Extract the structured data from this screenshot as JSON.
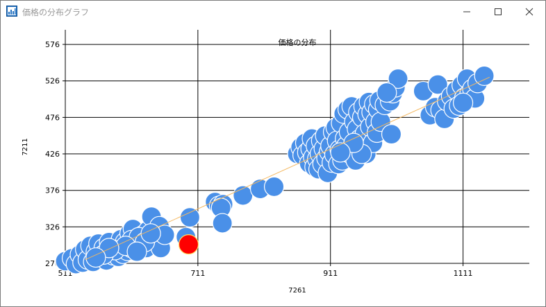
{
  "window": {
    "title": "価格の分布グラフ"
  },
  "chart_data": {
    "type": "scatter",
    "title": "価格の分布",
    "xlabel": "7261",
    "ylabel": "7211",
    "xlim": [
      511,
      1211
    ],
    "ylim": [
      276,
      596
    ],
    "xticks": [
      "511",
      "711",
      "911",
      "1111"
    ],
    "yticks": [
      "276",
      "326",
      "376",
      "426",
      "476",
      "526",
      "576"
    ],
    "grid": true,
    "colors": {
      "points": "#4a90e8",
      "highlight": "#ff0000",
      "trend": "#f4b860"
    },
    "trendline": {
      "x": [
        541,
        1151
      ],
      "y": [
        281,
        531
      ]
    },
    "highlight": {
      "x": 697,
      "y": 302
    },
    "points": [
      [
        511,
        279
      ],
      [
        521,
        283
      ],
      [
        527,
        275
      ],
      [
        533,
        288
      ],
      [
        537,
        277
      ],
      [
        541,
        295
      ],
      [
        545,
        281
      ],
      [
        549,
        300
      ],
      [
        553,
        278
      ],
      [
        557,
        292
      ],
      [
        561,
        303
      ],
      [
        565,
        285
      ],
      [
        569,
        297
      ],
      [
        573,
        280
      ],
      [
        577,
        305
      ],
      [
        579,
        291
      ],
      [
        583,
        287
      ],
      [
        587,
        299
      ],
      [
        591,
        285
      ],
      [
        595,
        309
      ],
      [
        598,
        289
      ],
      [
        601,
        305
      ],
      [
        605,
        293
      ],
      [
        608,
        317
      ],
      [
        611,
        297
      ],
      [
        613,
        323
      ],
      [
        617,
        302
      ],
      [
        621,
        293
      ],
      [
        625,
        307
      ],
      [
        629,
        315
      ],
      [
        633,
        297
      ],
      [
        636,
        321
      ],
      [
        641,
        340
      ],
      [
        645,
        307
      ],
      [
        649,
        319
      ],
      [
        653,
        327
      ],
      [
        655,
        297
      ],
      [
        661,
        315
      ],
      [
        693,
        312
      ],
      [
        699,
        339
      ],
      [
        611,
        308
      ],
      [
        622,
        312
      ],
      [
        586,
        294
      ],
      [
        569,
        288
      ],
      [
        631,
        305
      ],
      [
        602,
        300
      ],
      [
        577,
        297
      ],
      [
        619,
        292
      ],
      [
        640,
        317
      ],
      [
        557,
        284
      ],
      [
        737,
        360
      ],
      [
        743,
        355
      ],
      [
        749,
        357
      ],
      [
        746,
        352
      ],
      [
        748,
        331
      ],
      [
        779,
        369
      ],
      [
        805,
        378
      ],
      [
        826,
        381
      ],
      [
        861,
        426
      ],
      [
        866,
        435
      ],
      [
        869,
        424
      ],
      [
        873,
        441
      ],
      [
        876,
        428
      ],
      [
        879,
        413
      ],
      [
        881,
        433
      ],
      [
        883,
        447
      ],
      [
        885,
        421
      ],
      [
        887,
        408
      ],
      [
        889,
        437
      ],
      [
        891,
        419
      ],
      [
        893,
        405
      ],
      [
        895,
        426
      ],
      [
        897,
        444
      ],
      [
        899,
        412
      ],
      [
        901,
        433
      ],
      [
        903,
        451
      ],
      [
        905,
        420
      ],
      [
        907,
        400
      ],
      [
        909,
        429
      ],
      [
        911,
        437
      ],
      [
        913,
        414
      ],
      [
        915,
        456
      ],
      [
        917,
        425
      ],
      [
        919,
        462
      ],
      [
        921,
        444
      ],
      [
        923,
        412
      ],
      [
        925,
        432
      ],
      [
        927,
        468
      ],
      [
        929,
        417
      ],
      [
        931,
        481
      ],
      [
        933,
        447
      ],
      [
        935,
        437
      ],
      [
        937,
        487
      ],
      [
        939,
        456
      ],
      [
        941,
        426
      ],
      [
        943,
        491
      ],
      [
        945,
        438
      ],
      [
        947,
        470
      ],
      [
        949,
        417
      ],
      [
        951,
        460
      ],
      [
        953,
        483
      ],
      [
        955,
        446
      ],
      [
        957,
        435
      ],
      [
        959,
        476
      ],
      [
        961,
        491
      ],
      [
        963,
        454
      ],
      [
        965,
        426
      ],
      [
        967,
        480
      ],
      [
        969,
        497
      ],
      [
        971,
        463
      ],
      [
        973,
        483
      ],
      [
        975,
        441
      ],
      [
        977,
        494
      ],
      [
        979,
        470
      ],
      [
        981,
        455
      ],
      [
        983,
        487
      ],
      [
        985,
        499
      ],
      [
        987,
        470
      ],
      [
        993,
        493
      ],
      [
        1003,
        453
      ],
      [
        1001,
        498
      ],
      [
        1005,
        509
      ],
      [
        1009,
        517
      ],
      [
        1013,
        529
      ],
      [
        996,
        510
      ],
      [
        958,
        426
      ],
      [
        946,
        441
      ],
      [
        926,
        428
      ],
      [
        1051,
        512
      ],
      [
        1061,
        479
      ],
      [
        1069,
        490
      ],
      [
        1073,
        521
      ],
      [
        1077,
        486
      ],
      [
        1083,
        474
      ],
      [
        1087,
        498
      ],
      [
        1093,
        505
      ],
      [
        1097,
        488
      ],
      [
        1101,
        513
      ],
      [
        1105,
        492
      ],
      [
        1109,
        520
      ],
      [
        1113,
        503
      ],
      [
        1117,
        529
      ],
      [
        1121,
        509
      ],
      [
        1125,
        515
      ],
      [
        1129,
        502
      ],
      [
        1133,
        523
      ],
      [
        1143,
        533
      ],
      [
        1111,
        496
      ]
    ]
  }
}
